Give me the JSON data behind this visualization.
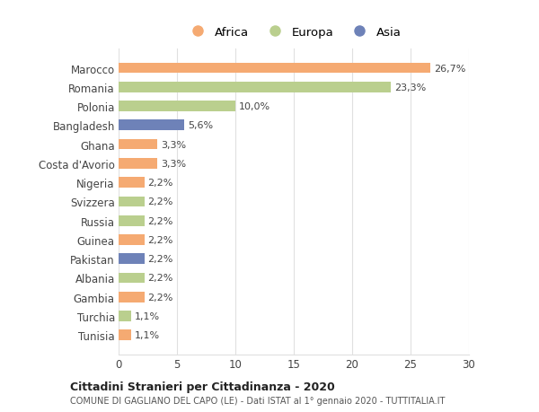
{
  "countries": [
    "Marocco",
    "Romania",
    "Polonia",
    "Bangladesh",
    "Ghana",
    "Costa d'Avorio",
    "Nigeria",
    "Svizzera",
    "Russia",
    "Guinea",
    "Pakistan",
    "Albania",
    "Gambia",
    "Turchia",
    "Tunisia"
  ],
  "values": [
    26.7,
    23.3,
    10.0,
    5.6,
    3.3,
    3.3,
    2.2,
    2.2,
    2.2,
    2.2,
    2.2,
    2.2,
    2.2,
    1.1,
    1.1
  ],
  "labels": [
    "26,7%",
    "23,3%",
    "10,0%",
    "5,6%",
    "3,3%",
    "3,3%",
    "2,2%",
    "2,2%",
    "2,2%",
    "2,2%",
    "2,2%",
    "2,2%",
    "2,2%",
    "1,1%",
    "1,1%"
  ],
  "continents": [
    "Africa",
    "Europa",
    "Europa",
    "Asia",
    "Africa",
    "Africa",
    "Africa",
    "Europa",
    "Europa",
    "Africa",
    "Asia",
    "Europa",
    "Africa",
    "Europa",
    "Africa"
  ],
  "colors": {
    "Africa": "#F5AA72",
    "Europa": "#BACF8E",
    "Asia": "#6E82B8"
  },
  "legend_labels": [
    "Africa",
    "Europa",
    "Asia"
  ],
  "legend_colors": [
    "#F5AA72",
    "#BACF8E",
    "#6E82B8"
  ],
  "title_bold": "Cittadini Stranieri per Cittadinanza - 2020",
  "subtitle": "COMUNE DI GAGLIANO DEL CAPO (LE) - Dati ISTAT al 1° gennaio 2020 - TUTTITALIA.IT",
  "xlim": [
    0,
    30
  ],
  "xticks": [
    0,
    5,
    10,
    15,
    20,
    25,
    30
  ],
  "background_color": "#ffffff",
  "grid_color": "#e0e0e0"
}
